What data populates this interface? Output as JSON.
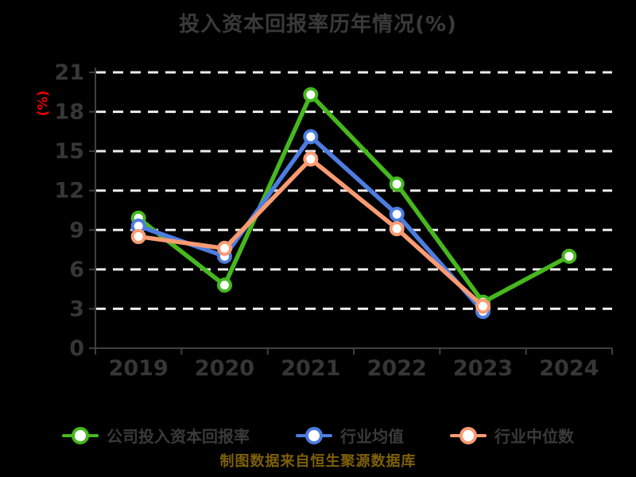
{
  "title": "投入资本回报率历年情况(%)",
  "y_axis_unit": "(%)",
  "footer": "制图数据来自恒生聚源数据库",
  "colors": {
    "company_series": "#46b81e",
    "industry_mean_series": "#4d7de0",
    "industry_median_series": "#fa9b72",
    "axis": "#3f3f3f",
    "gridline": "#ececec",
    "tick_label": "#363636",
    "title_text": "#3a3a3a",
    "unit_label": "#ea0000",
    "footer_text": "#7e6008",
    "background": "#000000",
    "marker_fill": "#ffffff"
  },
  "chart_data": {
    "type": "line",
    "title": "投入资本回报率历年情况(%)",
    "categories": [
      "2019",
      "2020",
      "2021",
      "2022",
      "2023",
      "2024"
    ],
    "series": [
      {
        "name": "公司投入资本回报率",
        "color": "#46b81e",
        "values": [
          9.9,
          4.8,
          19.3,
          12.5,
          3.5,
          7.0
        ]
      },
      {
        "name": "行业均值",
        "color": "#4d7de0",
        "values": [
          9.3,
          7.0,
          16.1,
          10.2,
          2.8,
          null
        ]
      },
      {
        "name": "行业中位数",
        "color": "#fa9b72",
        "values": [
          8.5,
          7.6,
          14.4,
          9.1,
          3.2,
          null
        ]
      }
    ],
    "xlabel": "",
    "ylabel": "(%)",
    "ylim": [
      0,
      21
    ],
    "yticks": [
      0,
      3,
      6,
      9,
      12,
      15,
      18,
      21
    ],
    "grid": true,
    "grid_style": "dashed",
    "legend_position": "bottom",
    "markers": "circle-white-fill"
  }
}
